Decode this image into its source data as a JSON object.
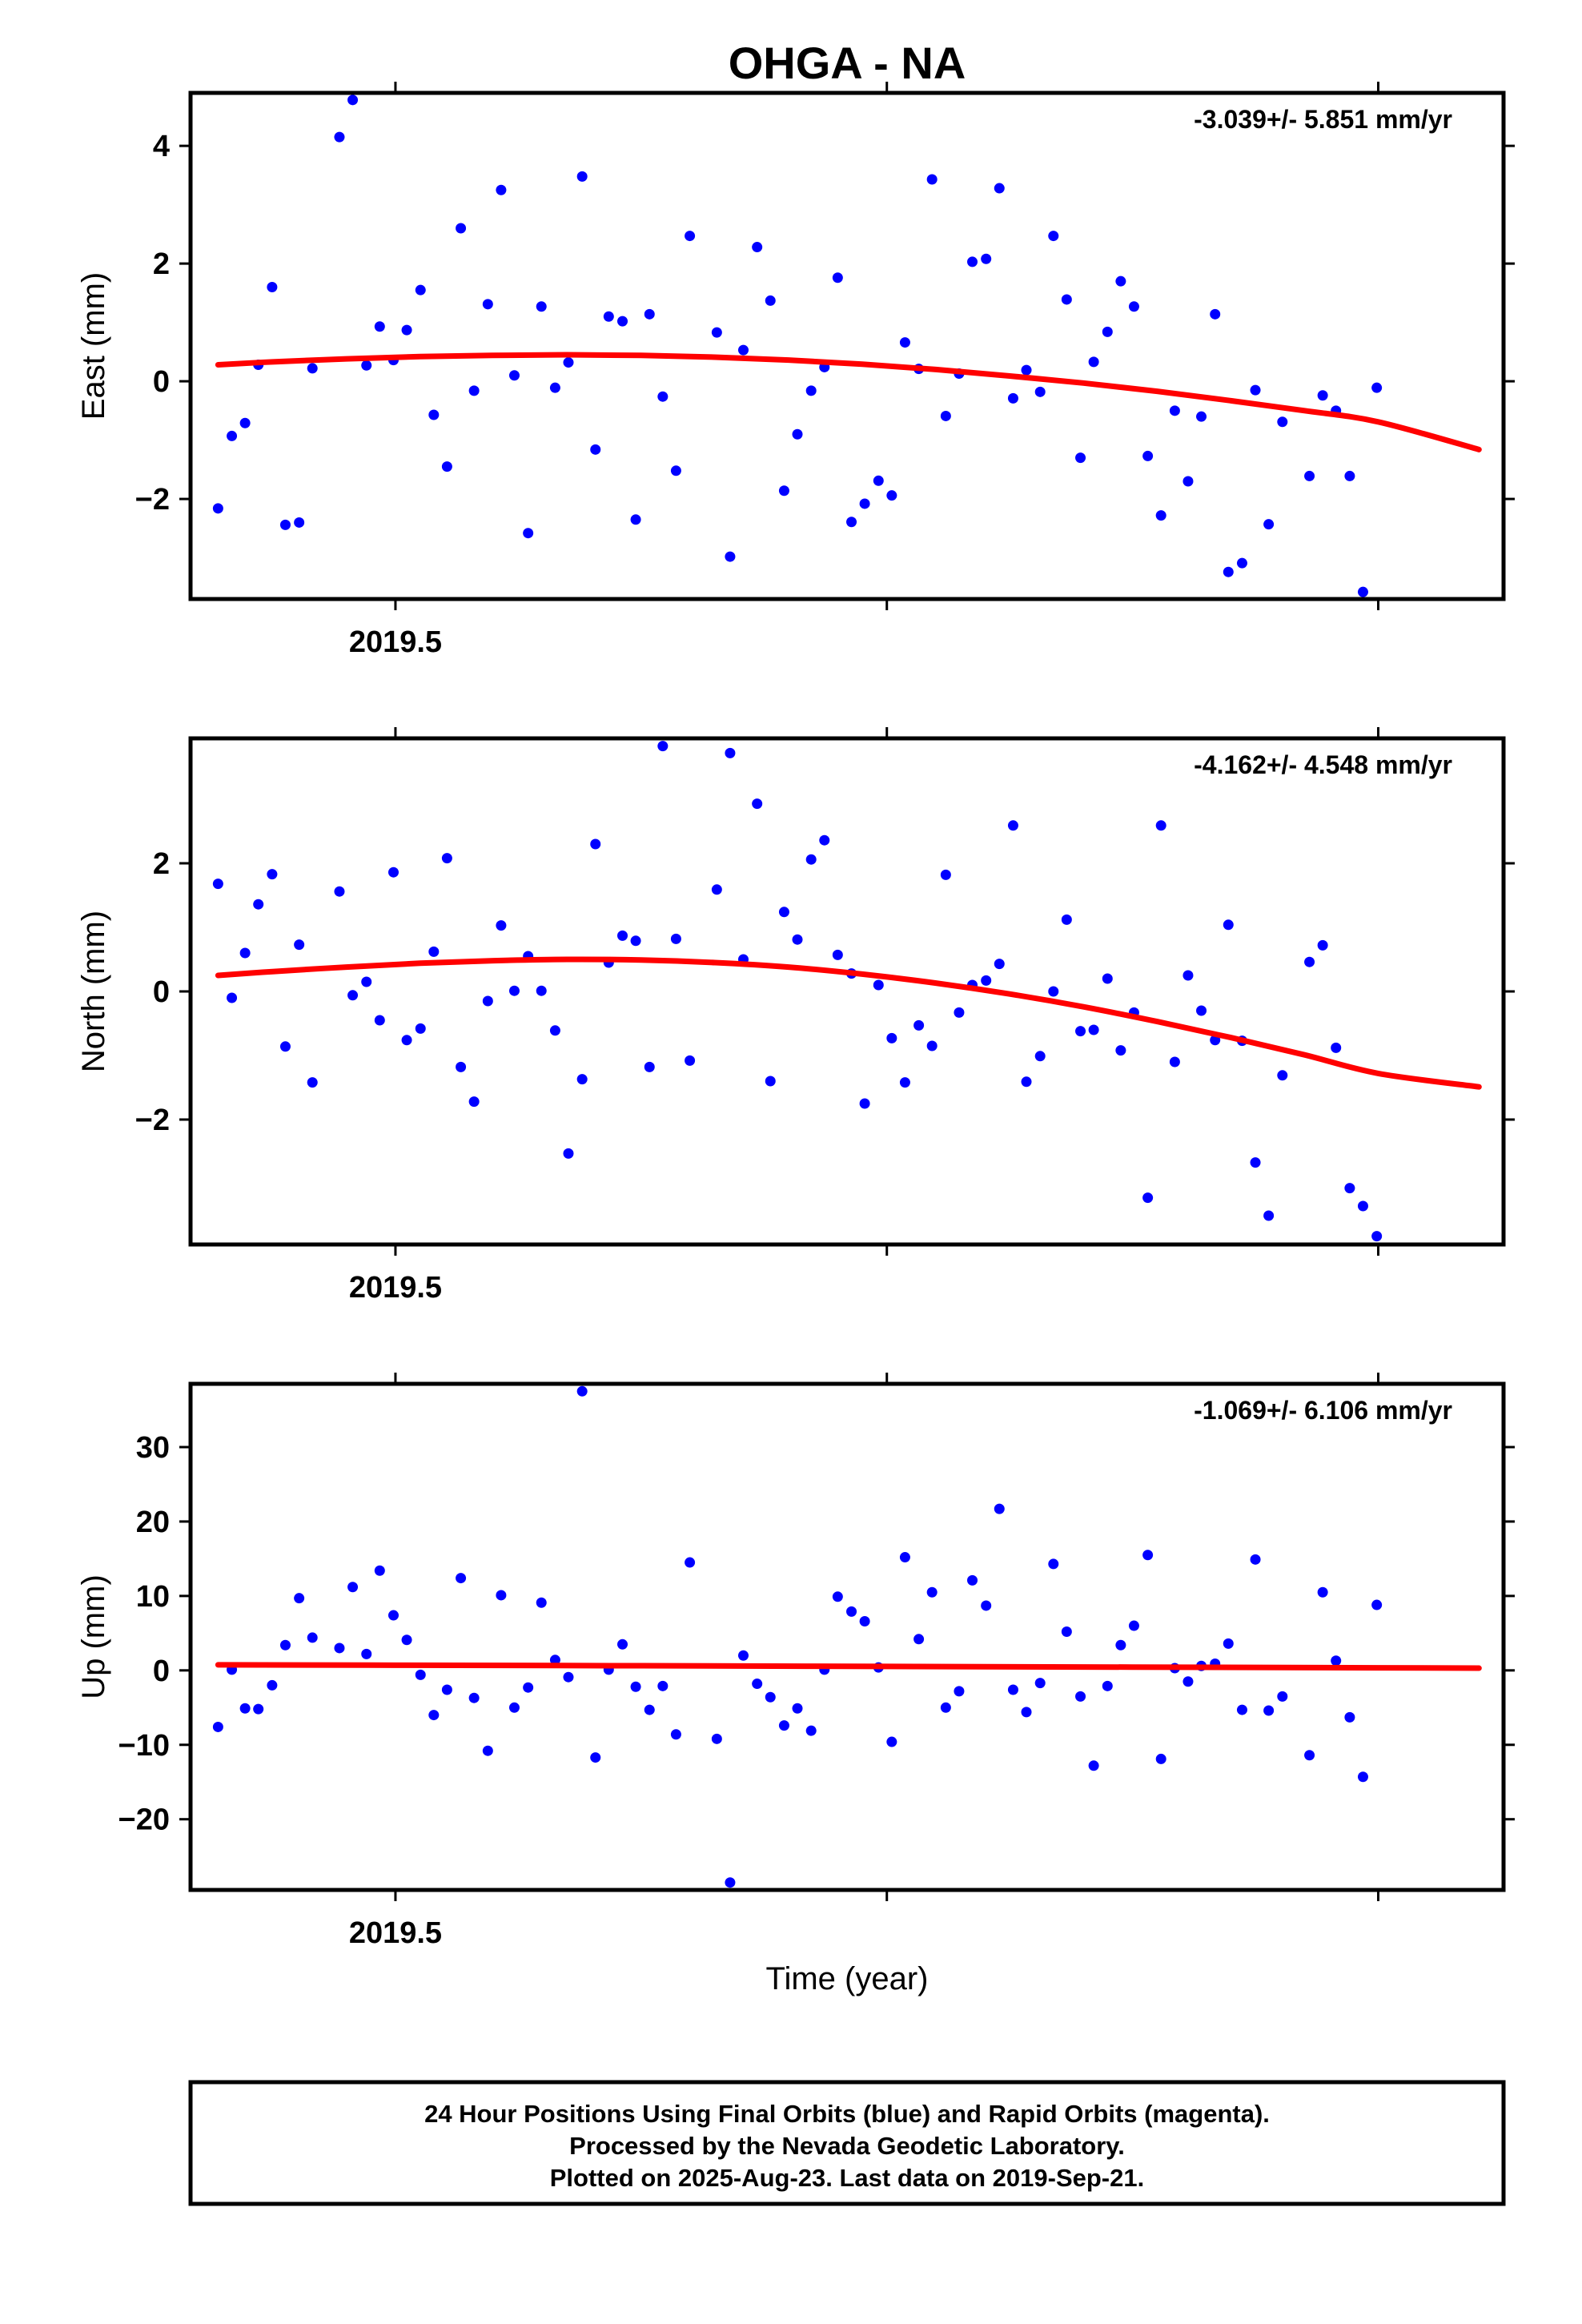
{
  "title": "OHGA - NA",
  "x_axis_label": "Time (year)",
  "footer": {
    "line1": "24 Hour Positions Using Final Orbits (blue) and Rapid Orbits (magenta).",
    "line2": "Processed by the Nevada Geodetic Laboratory.",
    "line3": "Plotted on 2025-Aug-23. Last data on 2019-Sep-21."
  },
  "colors": {
    "points": "#0000ff",
    "fit": "#ff0000",
    "frame": "#000000"
  },
  "chart_data": [
    {
      "type": "scatter",
      "name": "East",
      "ylabel": "East (mm)",
      "rate_label": "-3.039+/- 5.851 mm/yr",
      "xlim": [
        2019.4583,
        2019.7255
      ],
      "ylim": [
        -3.7,
        4.9
      ],
      "yticks": [
        -2,
        0,
        2,
        4
      ],
      "ytick_labels": [
        "−2",
        "0",
        "2",
        "4"
      ],
      "xticks": [
        2019.5,
        2019.6,
        2019.7
      ],
      "xtick_labels": [
        "2019.5",
        "",
        ""
      ],
      "x": [
        2019.4639,
        2019.4667,
        2019.4694,
        2019.4721,
        2019.4749,
        2019.4776,
        2019.4804,
        2019.4831,
        2019.4886,
        2019.4913,
        2019.4941,
        2019.4968,
        2019.4996,
        2019.5023,
        2019.5051,
        2019.5078,
        2019.5105,
        2019.5133,
        2019.516,
        2019.5188,
        2019.5215,
        2019.5242,
        2019.527,
        2019.5297,
        2019.5325,
        2019.5352,
        2019.538,
        2019.5407,
        2019.5434,
        2019.5462,
        2019.5489,
        2019.5517,
        2019.5544,
        2019.5571,
        2019.5599,
        2019.5654,
        2019.5681,
        2019.5708,
        2019.5736,
        2019.5763,
        2019.5791,
        2019.5818,
        2019.5846,
        2019.5873,
        2019.59,
        2019.5928,
        2019.5955,
        2019.5983,
        2019.601,
        2019.6037,
        2019.6065,
        2019.6092,
        2019.612,
        2019.6147,
        2019.6174,
        2019.6202,
        2019.6229,
        2019.6257,
        2019.6284,
        2019.6312,
        2019.6339,
        2019.6366,
        2019.6394,
        2019.6421,
        2019.6449,
        2019.6476,
        2019.6503,
        2019.6531,
        2019.6558,
        2019.6586,
        2019.6613,
        2019.664,
        2019.6668,
        2019.6695,
        2019.6723,
        2019.675,
        2019.6777,
        2019.6805,
        2019.686,
        2019.6887,
        2019.6914,
        2019.6942,
        2019.6969,
        2019.6997,
        2019.7024
      ],
      "values": [
        -2.16,
        -0.93,
        -0.71,
        0.28,
        1.6,
        -2.44,
        -2.4,
        0.22,
        4.15,
        4.78,
        0.27,
        0.93,
        0.36,
        0.87,
        1.55,
        -0.57,
        -1.45,
        2.6,
        -0.16,
        1.31,
        3.25,
        0.1,
        -2.58,
        1.27,
        -0.11,
        0.32,
        3.48,
        -1.16,
        1.1,
        1.02,
        -2.35,
        1.14,
        -0.26,
        -1.52,
        2.47,
        0.83,
        -2.98,
        0.53,
        2.28,
        1.37,
        -1.86,
        -0.9,
        -0.16,
        0.24,
        1.76,
        -2.39,
        -2.08,
        -1.69,
        -1.94,
        0.66,
        0.21,
        3.43,
        -0.59,
        0.13,
        2.03,
        2.08,
        3.28,
        -0.29,
        0.19,
        -0.18,
        2.47,
        1.39,
        -1.3,
        0.33,
        0.84,
        1.7,
        1.27,
        -1.27,
        -2.28,
        -0.5,
        -1.7,
        -0.6,
        1.14,
        -3.24,
        -3.09,
        -0.15,
        -2.43,
        -0.69,
        -1.61,
        -0.24,
        -0.5,
        -1.61,
        -3.58,
        -0.11,
        null
      ],
      "fit": {
        "x": [
          2019.4639,
          2019.475,
          2019.49,
          2019.505,
          2019.52,
          2019.535,
          2019.55,
          2019.565,
          2019.58,
          2019.595,
          2019.61,
          2019.625,
          2019.64,
          2019.655,
          2019.67,
          2019.685,
          2019.7,
          2019.7205
        ],
        "values": [
          0.28,
          0.33,
          0.38,
          0.42,
          0.44,
          0.45,
          0.44,
          0.41,
          0.36,
          0.29,
          0.2,
          0.09,
          -0.03,
          -0.17,
          -0.33,
          -0.5,
          -0.69,
          -1.16
        ]
      }
    },
    {
      "type": "scatter",
      "name": "North",
      "ylabel": "North (mm)",
      "rate_label": "-4.162+/- 4.548 mm/yr",
      "xlim": [
        2019.4583,
        2019.7255
      ],
      "ylim": [
        -3.95,
        3.95
      ],
      "yticks": [
        -2,
        0,
        2
      ],
      "ytick_labels": [
        "−2",
        "0",
        "2"
      ],
      "xticks": [
        2019.5,
        2019.6,
        2019.7
      ],
      "xtick_labels": [
        "2019.5",
        "",
        ""
      ],
      "x": [
        2019.4639,
        2019.4667,
        2019.4694,
        2019.4721,
        2019.4749,
        2019.4776,
        2019.4804,
        2019.4831,
        2019.4886,
        2019.4913,
        2019.4941,
        2019.4968,
        2019.4996,
        2019.5023,
        2019.5051,
        2019.5078,
        2019.5105,
        2019.5133,
        2019.516,
        2019.5188,
        2019.5215,
        2019.5242,
        2019.527,
        2019.5297,
        2019.5325,
        2019.5352,
        2019.538,
        2019.5407,
        2019.5434,
        2019.5462,
        2019.5489,
        2019.5517,
        2019.5544,
        2019.5571,
        2019.5599,
        2019.5654,
        2019.5681,
        2019.5708,
        2019.5736,
        2019.5763,
        2019.5791,
        2019.5818,
        2019.5846,
        2019.5873,
        2019.59,
        2019.5928,
        2019.5955,
        2019.5983,
        2019.601,
        2019.6037,
        2019.6065,
        2019.6092,
        2019.612,
        2019.6147,
        2019.6174,
        2019.6202,
        2019.6229,
        2019.6257,
        2019.6284,
        2019.6312,
        2019.6339,
        2019.6366,
        2019.6394,
        2019.6421,
        2019.6449,
        2019.6476,
        2019.6503,
        2019.6531,
        2019.6558,
        2019.6586,
        2019.6613,
        2019.664,
        2019.6668,
        2019.6695,
        2019.6723,
        2019.675,
        2019.6777,
        2019.6805,
        2019.686,
        2019.6887,
        2019.6914,
        2019.6942,
        2019.6969,
        2019.6997,
        2019.7024
      ],
      "values": [
        1.68,
        -0.1,
        0.6,
        1.36,
        1.83,
        -0.86,
        0.73,
        -1.42,
        1.56,
        -0.06,
        0.15,
        -0.45,
        1.86,
        -0.76,
        -0.58,
        0.62,
        2.08,
        -1.18,
        -1.72,
        -0.15,
        1.03,
        0.01,
        0.55,
        0.01,
        -0.61,
        -2.53,
        -1.37,
        2.3,
        0.45,
        0.87,
        0.79,
        -1.18,
        3.83,
        0.82,
        -1.08,
        1.59,
        3.72,
        0.5,
        2.93,
        -1.4,
        1.24,
        0.81,
        2.06,
        2.36,
        0.57,
        0.28,
        -1.75,
        0.1,
        -0.73,
        -1.42,
        -0.53,
        -0.85,
        1.82,
        -0.33,
        0.1,
        0.17,
        0.43,
        2.59,
        -1.41,
        -1.01,
        0.0,
        1.12,
        -0.62,
        -0.6,
        0.2,
        -0.92,
        -0.33,
        -3.22,
        2.59,
        -1.1,
        0.25,
        -0.3,
        -0.76,
        1.04,
        -0.77,
        -2.67,
        -3.5,
        -1.31,
        0.46,
        0.72,
        -0.88,
        -3.07,
        -3.35,
        -3.82,
        null
      ],
      "fit": {
        "x": [
          2019.4639,
          2019.475,
          2019.49,
          2019.505,
          2019.52,
          2019.535,
          2019.55,
          2019.565,
          2019.58,
          2019.595,
          2019.61,
          2019.625,
          2019.64,
          2019.655,
          2019.67,
          2019.685,
          2019.7,
          2019.7205
        ],
        "values": [
          0.25,
          0.31,
          0.38,
          0.44,
          0.48,
          0.5,
          0.49,
          0.45,
          0.38,
          0.27,
          0.13,
          -0.04,
          -0.24,
          -0.47,
          -0.72,
          -0.99,
          -1.28,
          -1.49
        ]
      }
    },
    {
      "type": "scatter",
      "name": "Up",
      "ylabel": "Up (mm)",
      "rate_label": "-1.069+/- 6.106 mm/yr",
      "xlim": [
        2019.4583,
        2019.7255
      ],
      "ylim": [
        -29.5,
        38.5
      ],
      "yticks": [
        -20,
        -10,
        0,
        10,
        20,
        30
      ],
      "ytick_labels": [
        "−20",
        "−10",
        "0",
        "10",
        "20",
        "30"
      ],
      "xticks": [
        2019.5,
        2019.6,
        2019.7
      ],
      "xtick_labels": [
        "2019.5",
        "",
        ""
      ],
      "x": [
        2019.4639,
        2019.4667,
        2019.4694,
        2019.4721,
        2019.4749,
        2019.4776,
        2019.4804,
        2019.4831,
        2019.4886,
        2019.4913,
        2019.4941,
        2019.4968,
        2019.4996,
        2019.5023,
        2019.5051,
        2019.5078,
        2019.5105,
        2019.5133,
        2019.516,
        2019.5188,
        2019.5215,
        2019.5242,
        2019.527,
        2019.5297,
        2019.5325,
        2019.5352,
        2019.538,
        2019.5407,
        2019.5434,
        2019.5462,
        2019.5489,
        2019.5517,
        2019.5544,
        2019.5571,
        2019.5599,
        2019.5654,
        2019.5681,
        2019.5708,
        2019.5736,
        2019.5763,
        2019.5791,
        2019.5818,
        2019.5846,
        2019.5873,
        2019.59,
        2019.5928,
        2019.5955,
        2019.5983,
        2019.601,
        2019.6037,
        2019.6065,
        2019.6092,
        2019.612,
        2019.6147,
        2019.6174,
        2019.6202,
        2019.6229,
        2019.6257,
        2019.6284,
        2019.6312,
        2019.6339,
        2019.6366,
        2019.6394,
        2019.6421,
        2019.6449,
        2019.6476,
        2019.6503,
        2019.6531,
        2019.6558,
        2019.6586,
        2019.6613,
        2019.664,
        2019.6668,
        2019.6695,
        2019.6723,
        2019.675,
        2019.6777,
        2019.6805,
        2019.686,
        2019.6887,
        2019.6914,
        2019.6942,
        2019.6969,
        2019.6997,
        2019.7024
      ],
      "values": [
        -7.6,
        0.1,
        -5.1,
        -5.2,
        -2.0,
        3.4,
        9.7,
        4.4,
        3.0,
        11.2,
        2.2,
        13.4,
        7.4,
        4.1,
        -0.6,
        -6.0,
        -2.6,
        12.4,
        -3.7,
        -10.8,
        10.1,
        -5.0,
        -2.3,
        9.1,
        1.4,
        -0.9,
        37.5,
        -11.7,
        0.1,
        3.5,
        -2.2,
        -5.3,
        -2.1,
        -8.6,
        14.5,
        -9.2,
        -28.5,
        2.0,
        -1.8,
        -3.6,
        -7.4,
        -5.1,
        -8.1,
        0.1,
        9.9,
        7.9,
        6.6,
        0.4,
        -9.6,
        15.2,
        4.2,
        10.5,
        -5.0,
        -2.8,
        12.1,
        8.7,
        21.7,
        -2.6,
        -5.6,
        -1.7,
        14.3,
        5.2,
        -3.5,
        -12.8,
        -2.1,
        3.4,
        6.0,
        15.5,
        -11.9,
        0.3,
        -1.5,
        0.6,
        0.9,
        3.6,
        -5.3,
        14.9,
        -5.4,
        -3.5,
        -11.4,
        10.5,
        1.3,
        -6.3,
        -14.3,
        8.8,
        null
      ],
      "fit": {
        "x": [
          2019.4639,
          2019.5,
          2019.55,
          2019.6,
          2019.65,
          2019.7,
          2019.7205
        ],
        "values": [
          0.75,
          0.7,
          0.62,
          0.53,
          0.44,
          0.35,
          0.3
        ]
      }
    }
  ]
}
